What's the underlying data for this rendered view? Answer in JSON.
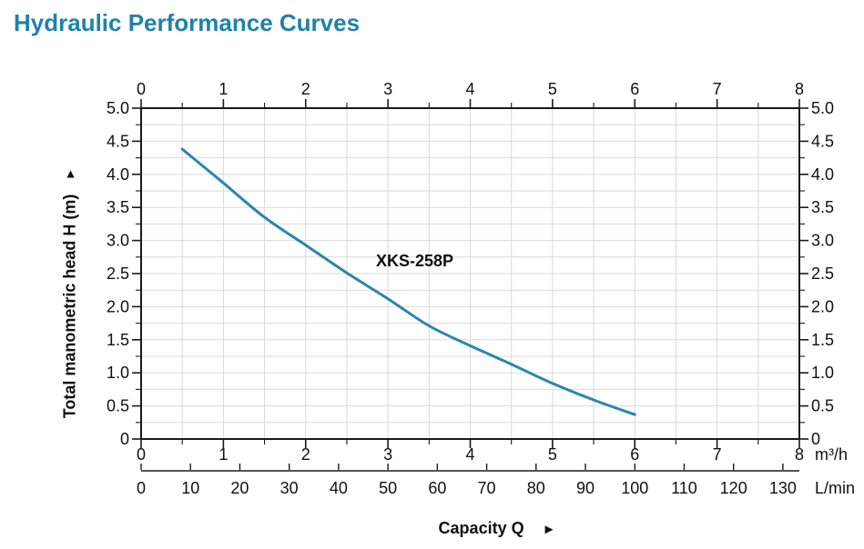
{
  "page": {
    "title": "Hydraulic Performance Curves"
  },
  "colors": {
    "title": "#1f82a8",
    "curve": "#2b86ad",
    "grid": "#d9d9d9",
    "axis": "#1a1a1a",
    "text": "#111111"
  },
  "chart_data": {
    "type": "line",
    "title": "Hydraulic Performance Curves",
    "series": [
      {
        "name": "XKS-258P",
        "color": "#2b86ad",
        "points": [
          [
            0.5,
            4.38
          ],
          [
            1.0,
            3.87
          ],
          [
            1.5,
            3.35
          ],
          [
            2.0,
            2.93
          ],
          [
            2.5,
            2.51
          ],
          [
            3.0,
            2.12
          ],
          [
            3.5,
            1.71
          ],
          [
            4.0,
            1.41
          ],
          [
            4.5,
            1.13
          ],
          [
            5.0,
            0.84
          ],
          [
            5.5,
            0.59
          ],
          [
            6.0,
            0.37
          ]
        ]
      }
    ],
    "x_axis": {
      "label": "Capacity Q",
      "arrow": "►",
      "unit": "m³/h",
      "range": [
        0,
        8
      ],
      "tick_values": [
        0,
        1,
        2,
        3,
        4,
        5,
        6,
        7,
        8
      ],
      "tick_labels": [
        "0",
        "1",
        "2",
        "3",
        "4",
        "5",
        "6",
        "7",
        "8"
      ],
      "minor_step": 0.5,
      "mirrored_top": true
    },
    "x_axis_secondary": {
      "unit": "L/min",
      "units_per_primary": 16.6667,
      "tick_values": [
        0,
        10,
        20,
        30,
        40,
        50,
        60,
        70,
        80,
        90,
        100,
        110,
        120,
        130
      ],
      "tick_labels": [
        "0",
        "10",
        "20",
        "30",
        "40",
        "50",
        "60",
        "70",
        "80",
        "90",
        "100",
        "110",
        "120",
        "130"
      ]
    },
    "y_axis": {
      "label": "Total manometric head H (m)",
      "arrow": "▲",
      "range": [
        0,
        5
      ],
      "tick_values": [
        5,
        4.5,
        4,
        3.5,
        3,
        2.5,
        2,
        1.5,
        1,
        0.5,
        0
      ],
      "tick_labels": [
        "5.0",
        "4.5",
        "4.0",
        "3.5",
        "3.0",
        "2.5",
        "2.0",
        "1.5",
        "1.0",
        "0.5",
        "0"
      ],
      "minor_step": 0.25,
      "mirrored_right": true
    },
    "grid": {
      "x_step": 0.5,
      "y_step": 0.25
    },
    "legend_position": "none"
  }
}
